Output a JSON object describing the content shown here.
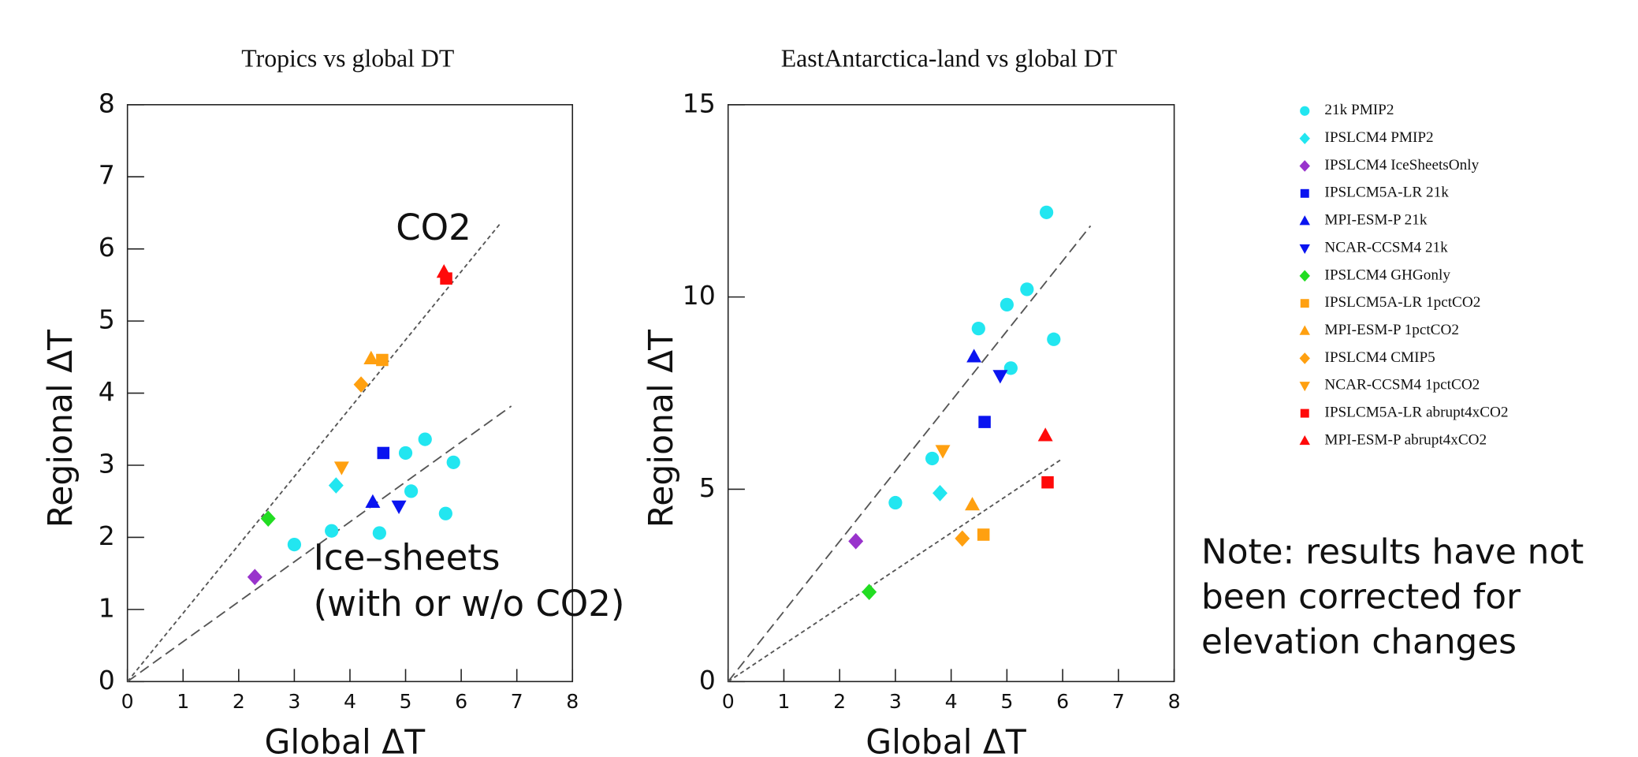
{
  "chart_data": [
    {
      "type": "scatter",
      "title": "Tropics vs global DT",
      "x_label": "Global ΔT",
      "y_label": "Regional ΔT",
      "xlim": [
        0,
        8
      ],
      "ylim": [
        0,
        8
      ],
      "xticks": [
        0,
        1,
        2,
        3,
        4,
        5,
        6,
        7,
        8
      ],
      "yticks": [
        0,
        1,
        2,
        3,
        4,
        5,
        6,
        7,
        8
      ],
      "annotations": [
        "CO2",
        "Ice–sheets",
        "(with or w/o CO2)"
      ],
      "lines": [
        {
          "style": "short-dash",
          "x": [
            0,
            6.7
          ],
          "y": [
            0,
            6.35
          ]
        },
        {
          "style": "long-dash",
          "x": [
            0,
            6.9
          ],
          "y": [
            0,
            3.82
          ]
        }
      ],
      "series": [
        {
          "name": "21k PMIP2",
          "color": "#22e6f0",
          "marker": "circle",
          "x": [
            3.0,
            3.67,
            4.53,
            5.0,
            5.1,
            5.35,
            5.72,
            5.86
          ],
          "values": [
            1.9,
            2.09,
            2.06,
            3.17,
            2.64,
            3.36,
            2.33,
            3.04
          ]
        },
        {
          "name": "IPSLCM4 PMIP2",
          "color": "#22e6f0",
          "marker": "diamond",
          "x": [
            3.75
          ],
          "values": [
            2.72
          ]
        },
        {
          "name": "IPSLCM4 IceSheetsOnly",
          "color": "#9933cc",
          "marker": "diamond",
          "x": [
            2.29
          ],
          "values": [
            1.45
          ]
        },
        {
          "name": "IPSLCM5A-LR 21k",
          "color": "#0a14f0",
          "marker": "square",
          "x": [
            4.6
          ],
          "values": [
            3.17
          ]
        },
        {
          "name": "MPI-ESM-P 21k",
          "color": "#0a14f0",
          "marker": "triangle",
          "x": [
            4.41
          ],
          "values": [
            2.49
          ]
        },
        {
          "name": "NCAR-CCSM4 21k",
          "color": "#0a14f0",
          "marker": "triangle-down",
          "x": [
            4.88
          ],
          "values": [
            2.43
          ]
        },
        {
          "name": "IPSLCM4 GHGonly",
          "color": "#22dd22",
          "marker": "diamond",
          "x": [
            2.53
          ],
          "values": [
            2.26
          ]
        },
        {
          "name": "IPSLCM5A-LR 1pctCO2",
          "color": "#ffa010",
          "marker": "square",
          "x": [
            4.58
          ],
          "values": [
            4.46
          ]
        },
        {
          "name": "MPI-ESM-P 1pctCO2",
          "color": "#ffa010",
          "marker": "triangle",
          "x": [
            4.38
          ],
          "values": [
            4.48
          ]
        },
        {
          "name": "IPSLCM4 CMIP5",
          "color": "#ffa010",
          "marker": "diamond",
          "x": [
            4.2
          ],
          "values": [
            4.12
          ]
        },
        {
          "name": "NCAR-CCSM4 1pctCO2",
          "color": "#ffa010",
          "marker": "triangle-down",
          "x": [
            3.85
          ],
          "values": [
            2.97
          ]
        },
        {
          "name": "IPSLCM5A-LR abrupt4xCO2",
          "color": "#ff0a0a",
          "marker": "square",
          "x": [
            5.73
          ],
          "values": [
            5.59
          ]
        },
        {
          "name": "MPI-ESM-P abrupt4xCO2",
          "color": "#ff0a0a",
          "marker": "triangle",
          "x": [
            5.69
          ],
          "values": [
            5.68
          ]
        }
      ]
    },
    {
      "type": "scatter",
      "title": "EastAntarctica-land vs global DT",
      "x_label": "Global ΔT",
      "y_label": "Regional ΔT",
      "xlim": [
        0,
        8
      ],
      "ylim": [
        0,
        15
      ],
      "xticks": [
        0,
        1,
        2,
        3,
        4,
        5,
        6,
        7,
        8
      ],
      "yticks": [
        0,
        5,
        10,
        15
      ],
      "lines": [
        {
          "style": "long-dash",
          "x": [
            0,
            6.5
          ],
          "y": [
            0,
            11.85
          ]
        },
        {
          "style": "short-dash",
          "x": [
            0,
            6.0
          ],
          "y": [
            0,
            5.8
          ]
        }
      ],
      "series": [
        {
          "name": "21k PMIP2",
          "color": "#22e6f0",
          "marker": "circle",
          "x": [
            3.0,
            3.66,
            4.49,
            5.0,
            5.36,
            5.71,
            5.07,
            5.84
          ],
          "values": [
            4.65,
            5.8,
            9.18,
            9.8,
            10.2,
            12.2,
            8.15,
            8.9
          ]
        },
        {
          "name": "IPSLCM4 PMIP2",
          "color": "#22e6f0",
          "marker": "diamond",
          "x": [
            3.8
          ],
          "values": [
            4.9
          ]
        },
        {
          "name": "IPSLCM4 IceSheetsOnly",
          "color": "#9933cc",
          "marker": "diamond",
          "x": [
            2.29
          ],
          "values": [
            3.65
          ]
        },
        {
          "name": "IPSLCM5A-LR 21k",
          "color": "#0a14f0",
          "marker": "square",
          "x": [
            4.6
          ],
          "values": [
            6.75
          ]
        },
        {
          "name": "MPI-ESM-P 21k",
          "color": "#0a14f0",
          "marker": "triangle",
          "x": [
            4.41
          ],
          "values": [
            8.45
          ]
        },
        {
          "name": "NCAR-CCSM4 21k",
          "color": "#0a14f0",
          "marker": "triangle-down",
          "x": [
            4.88
          ],
          "values": [
            7.95
          ]
        },
        {
          "name": "IPSLCM4 GHGonly",
          "color": "#22dd22",
          "marker": "diamond",
          "x": [
            2.53
          ],
          "values": [
            2.33
          ]
        },
        {
          "name": "IPSLCM5A-LR 1pctCO2",
          "color": "#ffa010",
          "marker": "square",
          "x": [
            4.58
          ],
          "values": [
            3.82
          ]
        },
        {
          "name": "MPI-ESM-P 1pctCO2",
          "color": "#ffa010",
          "marker": "triangle",
          "x": [
            4.38
          ],
          "values": [
            4.6
          ]
        },
        {
          "name": "IPSLCM4 CMIP5",
          "color": "#ffa010",
          "marker": "diamond",
          "x": [
            4.2
          ],
          "values": [
            3.72
          ]
        },
        {
          "name": "NCAR-CCSM4 1pctCO2",
          "color": "#ffa010",
          "marker": "triangle-down",
          "x": [
            3.85
          ],
          "values": [
            6.0
          ]
        },
        {
          "name": "IPSLCM5A-LR abrupt4xCO2",
          "color": "#ff0a0a",
          "marker": "square",
          "x": [
            5.73
          ],
          "values": [
            5.18
          ]
        },
        {
          "name": "MPI-ESM-P abrupt4xCO2",
          "color": "#ff0a0a",
          "marker": "triangle",
          "x": [
            5.69
          ],
          "values": [
            6.4
          ]
        }
      ]
    }
  ],
  "note": [
    "Note: results have not",
    "been corrected for",
    "elevation changes"
  ]
}
